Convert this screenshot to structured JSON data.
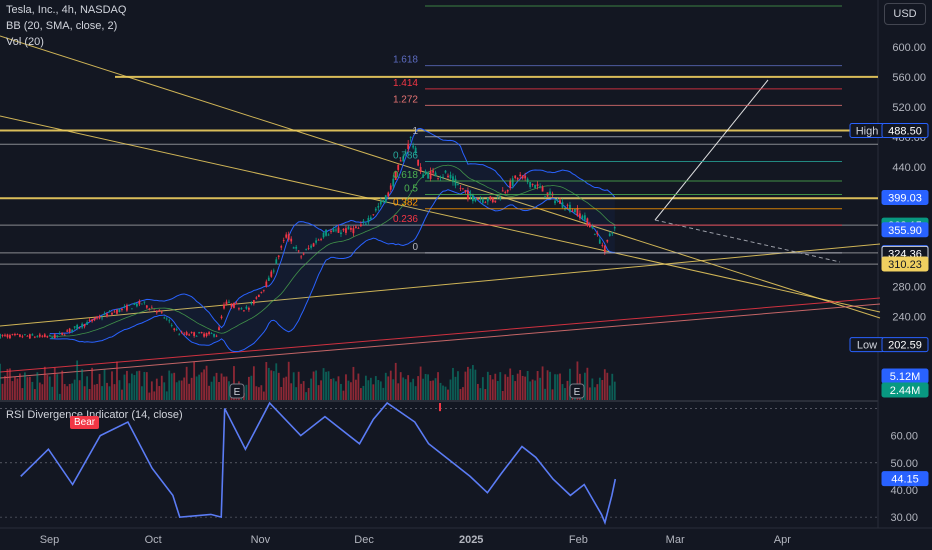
{
  "header": {
    "symbol_line": "Tesla, Inc., 4h, NASDAQ",
    "bb_line": "BB (20, SMA, close, 2)",
    "vol_line": "Vol (20)",
    "currency": "USD"
  },
  "rsi_panel": {
    "title": "RSI Divergence Indicator (14, close)",
    "bear_label": "Bear"
  },
  "earnings_marker": "E",
  "chart_data": [
    {
      "type": "candlestick",
      "title": "Tesla, Inc., 4h, NASDAQ",
      "x_ticks": [
        "Sep",
        "Oct",
        "Nov",
        "Dec",
        "2025",
        "Feb",
        "Mar",
        "Apr"
      ],
      "y_ticks": [
        600,
        560,
        520,
        480,
        440,
        400,
        360,
        320,
        280,
        240
      ],
      "y_tick_labels": [
        "600.00",
        "560.00",
        "520.00",
        "480.00",
        "440.00",
        "",
        "",
        "",
        "280.00",
        "240.00"
      ],
      "ylim": [
        190,
        660
      ],
      "price_anchors": [
        {
          "date": "2024-08-26",
          "price": 214
        },
        {
          "date": "2024-09-05",
          "price": 213
        },
        {
          "date": "2024-09-20",
          "price": 243
        },
        {
          "date": "2024-09-30",
          "price": 258
        },
        {
          "date": "2024-10-05",
          "price": 247
        },
        {
          "date": "2024-10-11",
          "price": 217
        },
        {
          "date": "2024-10-22",
          "price": 216
        },
        {
          "date": "2024-10-24",
          "price": 258
        },
        {
          "date": "2024-10-31",
          "price": 250
        },
        {
          "date": "2024-11-06",
          "price": 290
        },
        {
          "date": "2024-11-11",
          "price": 350
        },
        {
          "date": "2024-11-15",
          "price": 320
        },
        {
          "date": "2024-11-22",
          "price": 352
        },
        {
          "date": "2024-12-02",
          "price": 357
        },
        {
          "date": "2024-12-10",
          "price": 400
        },
        {
          "date": "2024-12-17",
          "price": 479
        },
        {
          "date": "2024-12-20",
          "price": 430
        },
        {
          "date": "2024-12-27",
          "price": 430
        },
        {
          "date": "2025-01-03",
          "price": 400
        },
        {
          "date": "2025-01-10",
          "price": 395
        },
        {
          "date": "2025-01-17",
          "price": 427
        },
        {
          "date": "2025-01-22",
          "price": 415
        },
        {
          "date": "2025-01-28",
          "price": 395
        },
        {
          "date": "2025-02-03",
          "price": 380
        },
        {
          "date": "2025-02-07",
          "price": 362
        },
        {
          "date": "2025-02-11",
          "price": 330
        },
        {
          "date": "2025-02-13",
          "price": 356
        }
      ],
      "price_tags": [
        {
          "label": "High",
          "value": "488.50",
          "price": 488.5,
          "color": "#131722",
          "border": "#2962ff"
        },
        {
          "label": "",
          "value": "399.03",
          "price": 399.03,
          "color": "#2962ff"
        },
        {
          "label": "",
          "value": "362.15",
          "price": 362.15,
          "color": "#089981"
        },
        {
          "label": "",
          "value": "355.90",
          "price": 355.9,
          "color": "#2962ff"
        },
        {
          "label": "",
          "value": "325.28",
          "price": 325.28,
          "color": "#2962ff"
        },
        {
          "label": "",
          "value": "324.36",
          "price": 324.36,
          "color": "#131722",
          "border": "#d1d4dc"
        },
        {
          "label": "",
          "value": "310.23",
          "price": 310.23,
          "color": "#f0d060",
          "text": "#131722"
        },
        {
          "label": "Low",
          "value": "202.59",
          "price": 202.59,
          "color": "#131722",
          "border": "#2962ff"
        }
      ],
      "fib_levels": [
        {
          "ratio": "0",
          "price": 325,
          "color": "#b2b5be"
        },
        {
          "ratio": "0.236",
          "price": 362,
          "color": "#f23645"
        },
        {
          "ratio": "0.382",
          "price": 384,
          "color": "#ff9800"
        },
        {
          "ratio": "0.5",
          "price": 403,
          "color": "#4caf50"
        },
        {
          "ratio": "0.618",
          "price": 421,
          "color": "#4caf50"
        },
        {
          "ratio": "0.786",
          "price": 447,
          "color": "#26a69a"
        },
        {
          "ratio": "1",
          "price": 480,
          "color": "#b2b5be"
        },
        {
          "ratio": "1.272",
          "price": 522,
          "color": "#e57373"
        },
        {
          "ratio": "1.414",
          "price": 544,
          "color": "#f23645"
        },
        {
          "ratio": "1.618",
          "price": 575,
          "color": "#5c6bc0"
        }
      ],
      "horizontal_levels": [
        560,
        488.5,
        470,
        398,
        362,
        325,
        310
      ],
      "volume_tags": [
        "5.12M",
        "2.44M"
      ]
    },
    {
      "type": "line",
      "title": "RSI Divergence Indicator (14, close)",
      "y_ticks": [
        60,
        50,
        40,
        30
      ],
      "y_tick_labels": [
        "60.00",
        "50.00",
        "40.00",
        "30.00"
      ],
      "ylim": [
        26,
        72
      ],
      "current_value": "44.15",
      "rsi_anchors": [
        {
          "date": "2024-08-26",
          "value": 45
        },
        {
          "date": "2024-09-03",
          "value": 55
        },
        {
          "date": "2024-09-10",
          "value": 42
        },
        {
          "date": "2024-09-18",
          "value": 60
        },
        {
          "date": "2024-09-26",
          "value": 65
        },
        {
          "date": "2024-10-03",
          "value": 48
        },
        {
          "date": "2024-10-09",
          "value": 38
        },
        {
          "date": "2024-10-11",
          "value": 30
        },
        {
          "date": "2024-10-20",
          "value": 31
        },
        {
          "date": "2024-10-23",
          "value": 30
        },
        {
          "date": "2024-10-24",
          "value": 70
        },
        {
          "date": "2024-10-30",
          "value": 55
        },
        {
          "date": "2024-11-06",
          "value": 72
        },
        {
          "date": "2024-11-15",
          "value": 60
        },
        {
          "date": "2024-11-22",
          "value": 67
        },
        {
          "date": "2024-12-02",
          "value": 57
        },
        {
          "date": "2024-12-06",
          "value": 66
        },
        {
          "date": "2024-12-10",
          "value": 72
        },
        {
          "date": "2024-12-18",
          "value": 65
        },
        {
          "date": "2024-12-22",
          "value": 57
        },
        {
          "date": "2024-12-29",
          "value": 50
        },
        {
          "date": "2025-01-03",
          "value": 45
        },
        {
          "date": "2025-01-08",
          "value": 39
        },
        {
          "date": "2025-01-12",
          "value": 46
        },
        {
          "date": "2025-01-18",
          "value": 56
        },
        {
          "date": "2025-01-22",
          "value": 52
        },
        {
          "date": "2025-01-27",
          "value": 44
        },
        {
          "date": "2025-02-01",
          "value": 38
        },
        {
          "date": "2025-02-05",
          "value": 42
        },
        {
          "date": "2025-02-10",
          "value": 31
        },
        {
          "date": "2025-02-11",
          "value": 28
        },
        {
          "date": "2025-02-13",
          "value": 38
        },
        {
          "date": "2025-02-14",
          "value": 44
        }
      ]
    }
  ]
}
